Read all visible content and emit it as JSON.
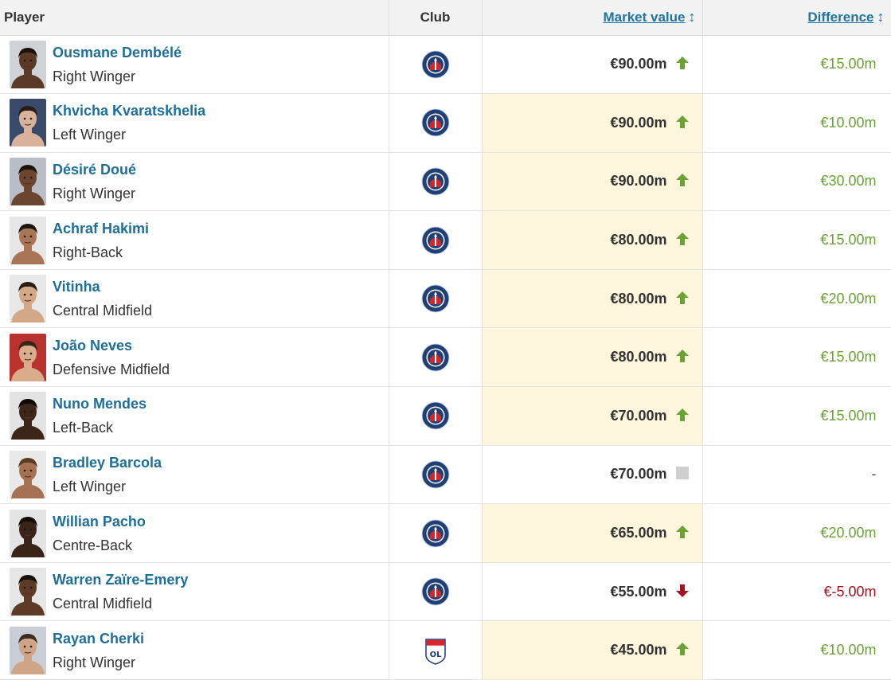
{
  "headers": {
    "player": "Player",
    "club": "Club",
    "market_value": "Market value",
    "difference": "Difference"
  },
  "colors": {
    "link": "#1d6f9a",
    "up": "#6aa233",
    "down": "#a3121e",
    "highlight": "#fdf5dc",
    "psg_blue": "#1f3f76",
    "psg_red": "#d6262d"
  },
  "rows": [
    {
      "name": "Ousmane Dembélé",
      "position": "Right Winger",
      "club_icon": "psg-crest-icon",
      "value": "€90.00m",
      "trend": "up",
      "diff": "€15.00m",
      "highlight": false,
      "skin": "#5a3a26",
      "hair": "#1a120c",
      "bg": "#cfd3d8"
    },
    {
      "name": "Khvicha Kvaratskhelia",
      "position": "Left Winger",
      "club_icon": "psg-crest-icon",
      "value": "€90.00m",
      "trend": "up",
      "diff": "€10.00m",
      "highlight": true,
      "skin": "#d8b29a",
      "hair": "#2a1c14",
      "bg": "#3a4a6a"
    },
    {
      "name": "Désiré Doué",
      "position": "Right Winger",
      "club_icon": "psg-crest-icon",
      "value": "€90.00m",
      "trend": "up",
      "diff": "€30.00m",
      "highlight": true,
      "skin": "#6b4530",
      "hair": "#1c130d",
      "bg": "#b9bec6"
    },
    {
      "name": "Achraf Hakimi",
      "position": "Right-Back",
      "club_icon": "psg-crest-icon",
      "value": "€80.00m",
      "trend": "up",
      "diff": "€15.00m",
      "highlight": true,
      "skin": "#a87656",
      "hair": "#1c140f",
      "bg": "#e6e6e6"
    },
    {
      "name": "Vitinha",
      "position": "Central Midfield",
      "club_icon": "psg-crest-icon",
      "value": "€80.00m",
      "trend": "up",
      "diff": "€20.00m",
      "highlight": true,
      "skin": "#d2a886",
      "hair": "#2b1d14",
      "bg": "#e8e8e8"
    },
    {
      "name": "João Neves",
      "position": "Defensive Midfield",
      "club_icon": "psg-crest-icon",
      "value": "€80.00m",
      "trend": "up",
      "diff": "€15.00m",
      "highlight": true,
      "skin": "#d9ad8c",
      "hair": "#3a2418",
      "bg": "#b8322f"
    },
    {
      "name": "Nuno Mendes",
      "position": "Left-Back",
      "club_icon": "psg-crest-icon",
      "value": "€70.00m",
      "trend": "up",
      "diff": "€15.00m",
      "highlight": true,
      "skin": "#3c2619",
      "hair": "#100a07",
      "bg": "#e3e3e3"
    },
    {
      "name": "Bradley Barcola",
      "position": "Left Winger",
      "club_icon": "psg-crest-icon",
      "value": "€70.00m",
      "trend": "same",
      "diff": "-",
      "highlight": false,
      "skin": "#a57152",
      "hair": "#5a3b22",
      "bg": "#e9e9e9"
    },
    {
      "name": "Willian Pacho",
      "position": "Centre-Back",
      "club_icon": "psg-crest-icon",
      "value": "€65.00m",
      "trend": "up",
      "diff": "€20.00m",
      "highlight": true,
      "skin": "#3a2419",
      "hair": "#120b08",
      "bg": "#e4e4e4"
    },
    {
      "name": "Warren Zaïre-Emery",
      "position": "Central Midfield",
      "club_icon": "psg-crest-icon",
      "value": "€55.00m",
      "trend": "down",
      "diff": "€-5.00m",
      "highlight": false,
      "skin": "#5d3b27",
      "hair": "#160f0a",
      "bg": "#e6e6e6"
    },
    {
      "name": "Rayan Cherki",
      "position": "Right Winger",
      "club_icon": "ol-crest-icon",
      "value": "€45.00m",
      "trend": "up",
      "diff": "€10.00m",
      "highlight": true,
      "skin": "#cfa487",
      "hair": "#3a2a20",
      "bg": "#c9ced6"
    }
  ]
}
